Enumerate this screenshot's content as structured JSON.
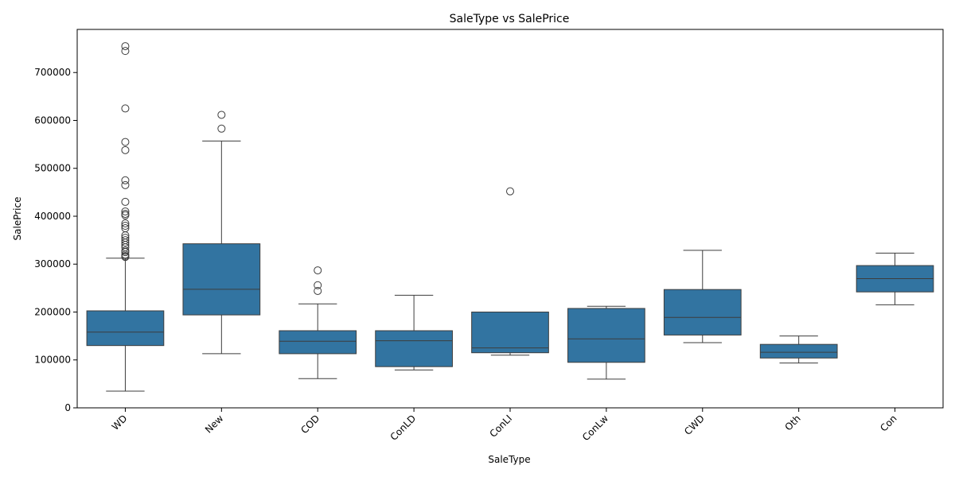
{
  "chart_data": {
    "type": "box",
    "title": "SaleType vs SalePrice",
    "xlabel": "SaleType",
    "ylabel": "SalePrice",
    "ylim": [
      0,
      790000
    ],
    "yticks": [
      0,
      100000,
      200000,
      300000,
      400000,
      500000,
      600000,
      700000
    ],
    "ytick_labels": [
      "0",
      "100000",
      "200000",
      "300000",
      "400000",
      "500000",
      "600000",
      "700000"
    ],
    "grid": false,
    "box_color": "#3274a1",
    "line_color": "#3d3d3d",
    "categories": [
      "WD",
      "New",
      "COD",
      "ConLD",
      "ConLI",
      "ConLw",
      "CWD",
      "Oth",
      "Con"
    ],
    "boxes": [
      {
        "min": 34900,
        "q1": 130000,
        "median": 158000,
        "q3": 202500,
        "max": 312500,
        "outliers": [
          315000,
          317000,
          320000,
          325000,
          328000,
          335000,
          340000,
          345000,
          350000,
          355000,
          360000,
          375000,
          380000,
          385000,
          402000,
          405000,
          410000,
          430000,
          465000,
          475000,
          538000,
          555000,
          625000,
          745000,
          755000
        ]
      },
      {
        "min": 113000,
        "q1": 194000,
        "median": 247500,
        "q3": 342500,
        "max": 557000,
        "outliers": [
          582900,
          611657
        ]
      },
      {
        "min": 61000,
        "q1": 113000,
        "median": 139000,
        "q3": 161000,
        "max": 217000,
        "outliers": [
          244000,
          256000,
          287000
        ]
      },
      {
        "min": 79000,
        "q1": 86000,
        "median": 140000,
        "q3": 161000,
        "max": 235000,
        "outliers": []
      },
      {
        "min": 110000,
        "q1": 115000,
        "median": 125000,
        "q3": 200000,
        "max": 200000,
        "outliers": [
          451950
        ]
      },
      {
        "min": 60000,
        "q1": 95000,
        "median": 144000,
        "q3": 207500,
        "max": 212000,
        "outliers": []
      },
      {
        "min": 136000,
        "q1": 152000,
        "median": 188750,
        "q3": 247000,
        "max": 328900,
        "outliers": []
      },
      {
        "min": 93500,
        "q1": 104000,
        "median": 116050,
        "q3": 132500,
        "max": 150000,
        "outliers": []
      },
      {
        "min": 215200,
        "q1": 242000,
        "median": 269600,
        "q3": 297000,
        "max": 323000,
        "outliers": []
      }
    ]
  }
}
